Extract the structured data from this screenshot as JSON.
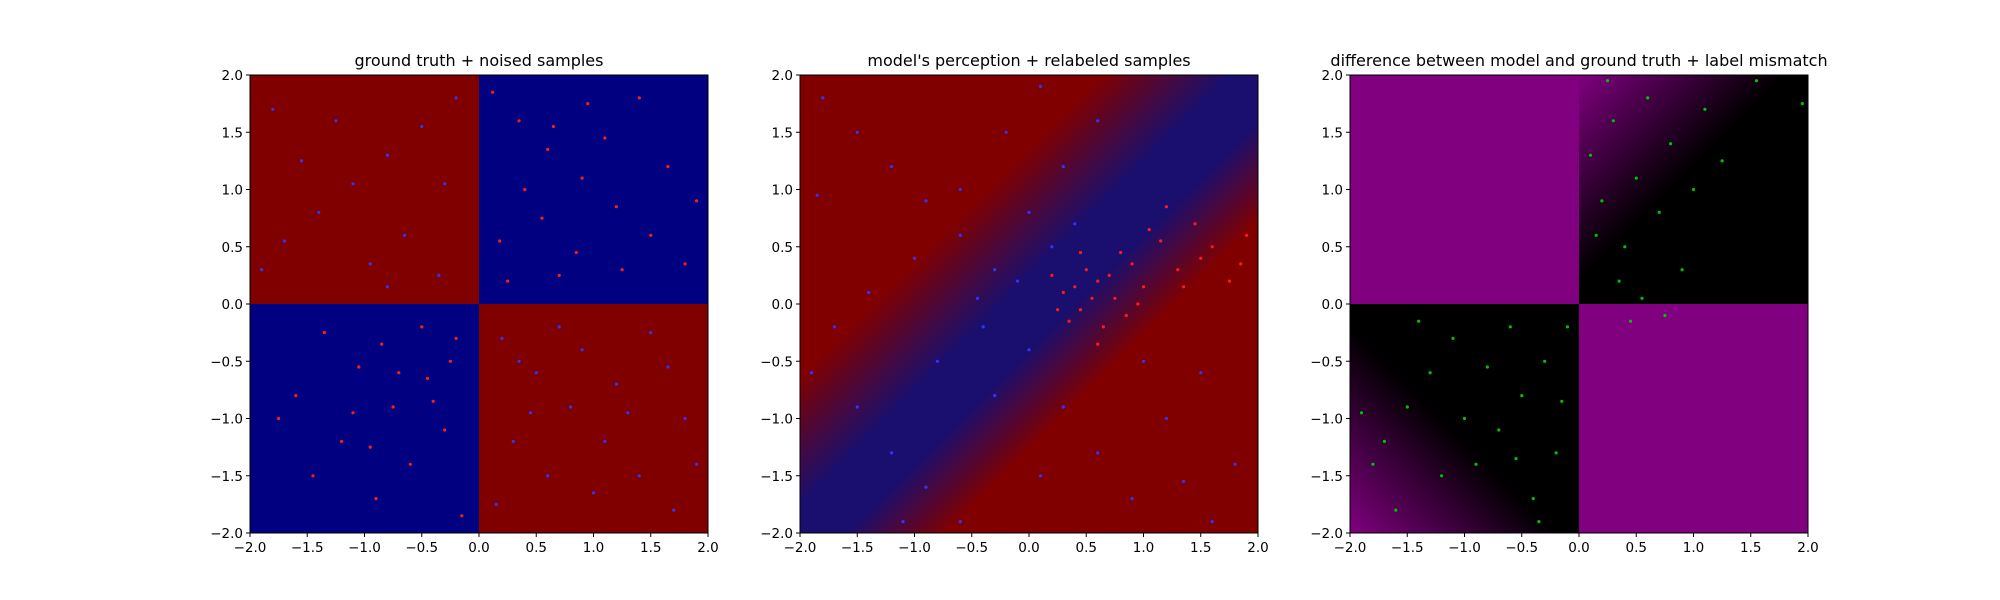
{
  "chart_data": [
    {
      "type": "scatter",
      "title": "ground truth + noised samples",
      "xlim": [
        -2.0,
        2.0
      ],
      "ylim": [
        -2.0,
        2.0
      ],
      "xtick_labels": [
        "−2.0",
        "−1.5",
        "−1.0",
        "−0.5",
        "0.0",
        "0.5",
        "1.0",
        "1.5",
        "2.0"
      ],
      "ytick_labels": [
        "−2.0",
        "−1.5",
        "−1.0",
        "−0.5",
        "0.0",
        "0.5",
        "1.0",
        "1.5",
        "2.0"
      ],
      "background": {
        "kind": "quadrants",
        "description": "XOR ground truth: positive x·y regions red, negative x·y regions blue",
        "colors": {
          "x_neg_y_pos": "#800000",
          "x_pos_y_pos": "#000080",
          "x_neg_y_neg": "#000080",
          "x_pos_y_neg": "#800000"
        }
      },
      "series": [
        {
          "label_color": "#ff1a1a",
          "region": "x>0,y>0 and x<0,y<0",
          "points": [
            [
              0.12,
              1.85
            ],
            [
              0.35,
              1.6
            ],
            [
              0.6,
              1.35
            ],
            [
              0.9,
              1.1
            ],
            [
              1.2,
              0.85
            ],
            [
              1.5,
              0.6
            ],
            [
              1.8,
              0.35
            ],
            [
              0.25,
              0.2
            ],
            [
              0.55,
              0.75
            ],
            [
              0.85,
              0.45
            ],
            [
              1.1,
              1.45
            ],
            [
              1.4,
              1.8
            ],
            [
              0.4,
              1.0
            ],
            [
              0.7,
              0.25
            ],
            [
              1.65,
              1.2
            ],
            [
              1.9,
              0.9
            ],
            [
              0.18,
              0.55
            ],
            [
              0.95,
              1.75
            ],
            [
              1.25,
              0.3
            ],
            [
              0.65,
              1.55
            ],
            [
              -0.2,
              -0.3
            ],
            [
              -0.45,
              -0.65
            ],
            [
              -0.75,
              -0.9
            ],
            [
              -1.05,
              -0.55
            ],
            [
              -1.35,
              -0.25
            ],
            [
              -1.6,
              -0.8
            ],
            [
              -0.3,
              -1.1
            ],
            [
              -0.6,
              -1.4
            ],
            [
              -0.9,
              -1.7
            ],
            [
              -1.2,
              -1.2
            ],
            [
              -0.15,
              -1.85
            ],
            [
              -0.5,
              -0.2
            ],
            [
              -0.85,
              -0.35
            ],
            [
              -1.1,
              -0.95
            ],
            [
              -0.4,
              -0.85
            ],
            [
              -0.7,
              -0.6
            ],
            [
              -1.45,
              -1.5
            ],
            [
              -0.25,
              -0.5
            ],
            [
              -0.95,
              -1.25
            ],
            [
              -1.75,
              -1.0
            ]
          ]
        },
        {
          "label_color": "#3333ff",
          "region": "x<0,y>0 and x>0,y<0",
          "points": [
            [
              -0.2,
              1.8
            ],
            [
              -0.5,
              1.55
            ],
            [
              -0.8,
              1.3
            ],
            [
              -1.1,
              1.05
            ],
            [
              -1.4,
              0.8
            ],
            [
              -1.7,
              0.55
            ],
            [
              -1.9,
              0.3
            ],
            [
              -0.35,
              0.25
            ],
            [
              -0.65,
              0.6
            ],
            [
              -0.95,
              0.35
            ],
            [
              -1.25,
              1.6
            ],
            [
              -1.55,
              1.25
            ],
            [
              -0.3,
              1.05
            ],
            [
              -0.8,
              0.15
            ],
            [
              -1.8,
              1.7
            ],
            [
              0.2,
              -0.3
            ],
            [
              0.5,
              -0.6
            ],
            [
              0.8,
              -0.9
            ],
            [
              1.1,
              -1.2
            ],
            [
              1.4,
              -1.5
            ],
            [
              1.7,
              -1.8
            ],
            [
              0.3,
              -1.2
            ],
            [
              0.6,
              -1.5
            ],
            [
              0.9,
              -0.4
            ],
            [
              1.2,
              -0.7
            ],
            [
              1.5,
              -0.25
            ],
            [
              1.8,
              -1.0
            ],
            [
              0.15,
              -1.75
            ],
            [
              0.45,
              -0.95
            ],
            [
              1.0,
              -1.65
            ],
            [
              1.3,
              -0.95
            ],
            [
              1.65,
              -0.55
            ],
            [
              0.7,
              -0.2
            ],
            [
              0.35,
              -0.5
            ],
            [
              1.9,
              -1.4
            ]
          ]
        }
      ]
    },
    {
      "type": "scatter",
      "title": "model's perception + relabeled samples",
      "xlim": [
        -2.0,
        2.0
      ],
      "ylim": [
        -2.0,
        2.0
      ],
      "xtick_labels": [
        "−2.0",
        "−1.5",
        "−1.0",
        "−0.5",
        "0.0",
        "0.5",
        "1.0",
        "1.5",
        "2.0"
      ],
      "ytick_labels": [
        "−2.0",
        "−1.5",
        "−1.0",
        "−0.5",
        "0.0",
        "0.5",
        "1.0",
        "1.5",
        "2.0"
      ],
      "background": {
        "kind": "smooth",
        "description": "mostly red, dark blue band across upper-center diagonal",
        "colors": {
          "main": "#800000",
          "band": "#10107a"
        }
      },
      "series": [
        {
          "label_color": "#ff1a1a",
          "region": "cluster near (0.6, 0.1) extending right",
          "points": [
            [
              0.3,
              0.1
            ],
            [
              0.45,
              -0.05
            ],
            [
              0.6,
              0.2
            ],
            [
              0.75,
              0.05
            ],
            [
              0.5,
              0.3
            ],
            [
              0.35,
              -0.15
            ],
            [
              0.9,
              0.35
            ],
            [
              0.65,
              -0.2
            ],
            [
              0.8,
              0.45
            ],
            [
              1.0,
              0.15
            ],
            [
              1.15,
              0.55
            ],
            [
              1.3,
              0.3
            ],
            [
              1.45,
              0.7
            ],
            [
              1.6,
              0.5
            ],
            [
              1.75,
              0.2
            ],
            [
              1.9,
              0.6
            ],
            [
              0.55,
              0.05
            ],
            [
              0.7,
              0.25
            ],
            [
              0.4,
              0.15
            ],
            [
              0.85,
              -0.1
            ],
            [
              1.2,
              0.85
            ],
            [
              1.05,
              0.65
            ],
            [
              0.25,
              -0.05
            ],
            [
              0.95,
              0.0
            ],
            [
              1.5,
              0.4
            ],
            [
              1.85,
              0.35
            ],
            [
              0.6,
              -0.35
            ],
            [
              0.45,
              0.45
            ],
            [
              1.35,
              0.15
            ],
            [
              0.2,
              0.25
            ]
          ]
        },
        {
          "label_color": "#3333ff",
          "region": "everywhere else",
          "points": [
            [
              -1.8,
              1.8
            ],
            [
              -1.5,
              1.5
            ],
            [
              -1.2,
              1.2
            ],
            [
              -0.9,
              0.9
            ],
            [
              -0.6,
              0.6
            ],
            [
              -0.3,
              0.3
            ],
            [
              0.0,
              0.8
            ],
            [
              0.3,
              1.2
            ],
            [
              0.6,
              1.6
            ],
            [
              -0.2,
              1.5
            ],
            [
              0.1,
              1.9
            ],
            [
              -0.6,
              1.0
            ],
            [
              -1.0,
              0.4
            ],
            [
              -1.4,
              0.1
            ],
            [
              -1.7,
              -0.2
            ],
            [
              -1.9,
              -0.6
            ],
            [
              -1.5,
              -0.9
            ],
            [
              -1.2,
              -1.3
            ],
            [
              -0.9,
              -1.6
            ],
            [
              -0.6,
              -1.9
            ],
            [
              -0.3,
              -0.8
            ],
            [
              0.0,
              -0.4
            ],
            [
              0.3,
              -0.9
            ],
            [
              0.6,
              -1.3
            ],
            [
              0.9,
              -1.7
            ],
            [
              1.2,
              -1.0
            ],
            [
              1.5,
              -0.6
            ],
            [
              1.8,
              -1.4
            ],
            [
              1.6,
              -1.9
            ],
            [
              -0.4,
              -0.2
            ],
            [
              -0.8,
              -0.5
            ],
            [
              0.1,
              -1.5
            ],
            [
              -1.1,
              -1.9
            ],
            [
              1.0,
              -0.5
            ],
            [
              0.4,
              0.7
            ],
            [
              0.2,
              0.5
            ],
            [
              -0.1,
              0.2
            ],
            [
              -0.45,
              0.05
            ],
            [
              1.35,
              -1.55
            ],
            [
              -1.85,
              0.95
            ]
          ]
        }
      ]
    },
    {
      "type": "scatter",
      "title": "difference between model and ground truth + label mismatch",
      "xlim": [
        -2.0,
        2.0
      ],
      "ylim": [
        -2.0,
        2.0
      ],
      "xtick_labels": [
        "−2.0",
        "−1.5",
        "−1.0",
        "−0.5",
        "0.0",
        "0.5",
        "1.0",
        "1.5",
        "2.0"
      ],
      "ytick_labels": [
        "−2.0",
        "−1.5",
        "−1.0",
        "−0.5",
        "0.0",
        "0.5",
        "1.0",
        "1.5",
        "2.0"
      ],
      "background": {
        "kind": "quadrants",
        "description": "purple where model disagrees with ground truth, black where it agrees",
        "colors": {
          "x_neg_y_pos": "#800080",
          "x_pos_y_pos": "#000000",
          "x_neg_y_neg": "#000000",
          "x_pos_y_neg": "#800080",
          "fade": "#800080"
        }
      },
      "series": [
        {
          "label_color": "#00c000",
          "region": "label mismatch points",
          "points": [
            [
              0.1,
              1.3
            ],
            [
              0.2,
              0.9
            ],
            [
              0.3,
              1.6
            ],
            [
              0.4,
              0.5
            ],
            [
              0.5,
              1.1
            ],
            [
              0.6,
              1.8
            ],
            [
              0.7,
              0.8
            ],
            [
              0.8,
              1.4
            ],
            [
              0.9,
              0.3
            ],
            [
              1.0,
              1.0
            ],
            [
              1.1,
              1.7
            ],
            [
              1.25,
              1.25
            ],
            [
              0.35,
              0.2
            ],
            [
              0.15,
              0.6
            ],
            [
              0.55,
              0.05
            ],
            [
              0.75,
              -0.1
            ],
            [
              0.45,
              -0.15
            ],
            [
              1.55,
              1.95
            ],
            [
              1.95,
              1.75
            ],
            [
              0.25,
              1.95
            ],
            [
              -0.1,
              -0.2
            ],
            [
              -0.3,
              -0.5
            ],
            [
              -0.5,
              -0.8
            ],
            [
              -0.7,
              -1.1
            ],
            [
              -0.9,
              -1.4
            ],
            [
              -1.1,
              -0.3
            ],
            [
              -1.3,
              -0.6
            ],
            [
              -1.5,
              -0.9
            ],
            [
              -1.7,
              -1.2
            ],
            [
              -1.9,
              -0.95
            ],
            [
              -0.2,
              -1.3
            ],
            [
              -0.4,
              -1.7
            ],
            [
              -0.6,
              -0.2
            ],
            [
              -0.8,
              -0.55
            ],
            [
              -1.0,
              -1.0
            ],
            [
              -1.2,
              -1.5
            ],
            [
              -1.4,
              -0.15
            ],
            [
              -0.15,
              -0.85
            ],
            [
              -0.55,
              -1.35
            ],
            [
              -1.6,
              -1.8
            ],
            [
              -0.35,
              -1.9
            ],
            [
              -1.8,
              -1.4
            ]
          ]
        }
      ]
    }
  ]
}
